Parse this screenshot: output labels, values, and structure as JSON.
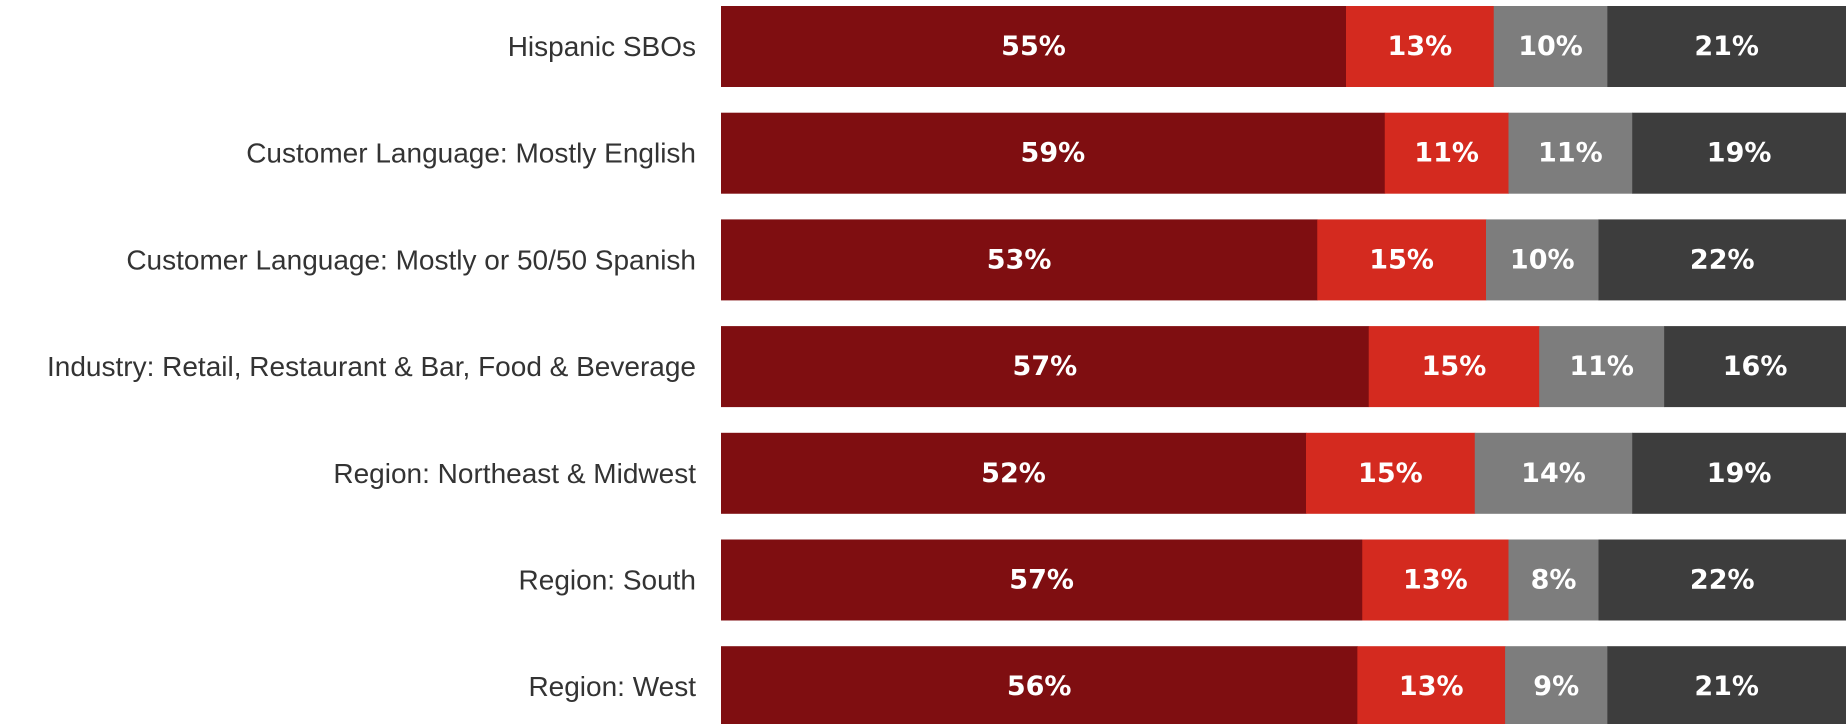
{
  "chart_data": {
    "type": "bar",
    "orientation": "horizontal",
    "stacked": true,
    "normalized": true,
    "title": "",
    "xlabel": "",
    "ylabel": "",
    "grid": false,
    "legend": "none",
    "categories": [
      "Hispanic SBOs",
      "Customer Language: Mostly English",
      "Customer Language: Mostly or 50/50 Spanish",
      "Industry: Retail, Restaurant & Bar, Food & Beverage",
      "Region: Northeast & Midwest",
      "Region: South",
      "Region: West"
    ],
    "series": [
      {
        "color": "#7f0e11",
        "values": [
          55,
          59,
          53,
          57,
          52,
          57,
          56
        ]
      },
      {
        "color": "#d42a1f",
        "values": [
          13,
          11,
          15,
          15,
          15,
          13,
          13
        ]
      },
      {
        "color": "#7d7d7d",
        "values": [
          10,
          11,
          10,
          11,
          14,
          8,
          9
        ]
      },
      {
        "color": "#3d3d3d",
        "values": [
          21,
          19,
          22,
          16,
          19,
          22,
          21
        ]
      }
    ],
    "value_suffix": "%"
  }
}
